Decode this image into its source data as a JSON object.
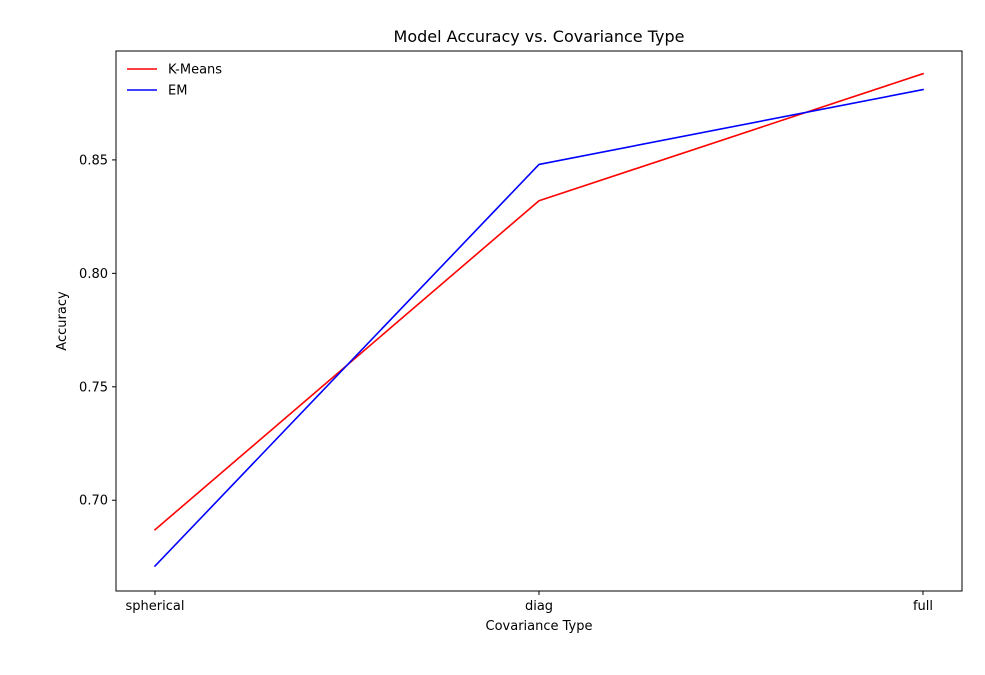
{
  "chart_data": {
    "type": "line",
    "title": "Model Accuracy vs. Covariance Type",
    "xlabel": "Covariance Type",
    "ylabel": "Accuracy",
    "categories": [
      "spherical",
      "diag",
      "full"
    ],
    "ylim": [
      0.66,
      0.898
    ],
    "yticks": [
      0.7,
      0.75,
      0.8,
      0.85
    ],
    "ytick_labels": [
      "0.70",
      "0.75",
      "0.80",
      "0.85"
    ],
    "grid": false,
    "legend_position": "top-left",
    "series": [
      {
        "name": "K-Means",
        "color": "#ff0000",
        "values": [
          0.687,
          0.832,
          0.888
        ]
      },
      {
        "name": "EM",
        "color": "#0000ff",
        "values": [
          0.671,
          0.848,
          0.881
        ]
      }
    ]
  }
}
